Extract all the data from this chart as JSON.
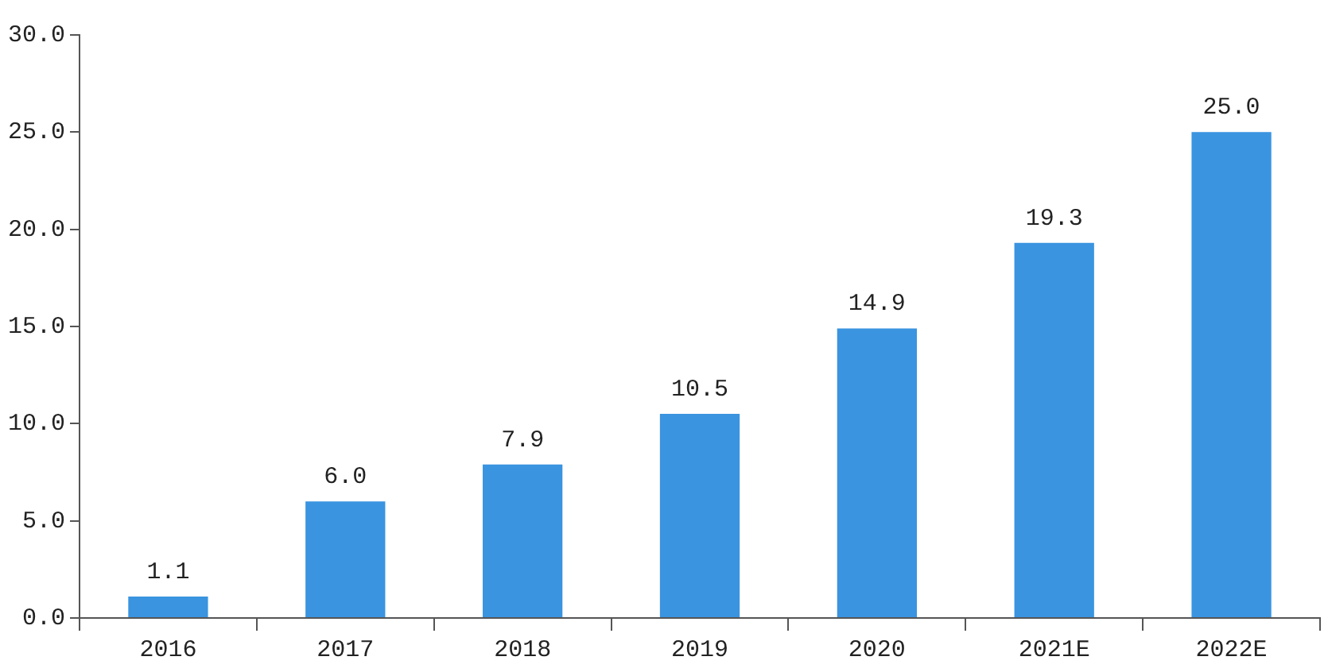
{
  "chart_data": {
    "type": "bar",
    "categories": [
      "2016",
      "2017",
      "2018",
      "2019",
      "2020",
      "2021E",
      "2022E"
    ],
    "values": [
      1.1,
      6.0,
      7.9,
      10.5,
      14.9,
      19.3,
      25.0
    ],
    "value_labels": [
      "1.1",
      "6.0",
      "7.9",
      "10.5",
      "14.9",
      "19.3",
      "25.0"
    ],
    "color": "#3a94e0",
    "ylim": [
      0,
      30
    ],
    "yticks": [
      {
        "value": 0,
        "label": "0.0"
      },
      {
        "value": 5,
        "label": "5.0"
      },
      {
        "value": 10,
        "label": "10.0"
      },
      {
        "value": 15,
        "label": "15.0"
      },
      {
        "value": 20,
        "label": "20.0"
      },
      {
        "value": 25,
        "label": "25.0"
      },
      {
        "value": 30,
        "label": "30.0"
      }
    ],
    "grid": false,
    "legend": false
  }
}
